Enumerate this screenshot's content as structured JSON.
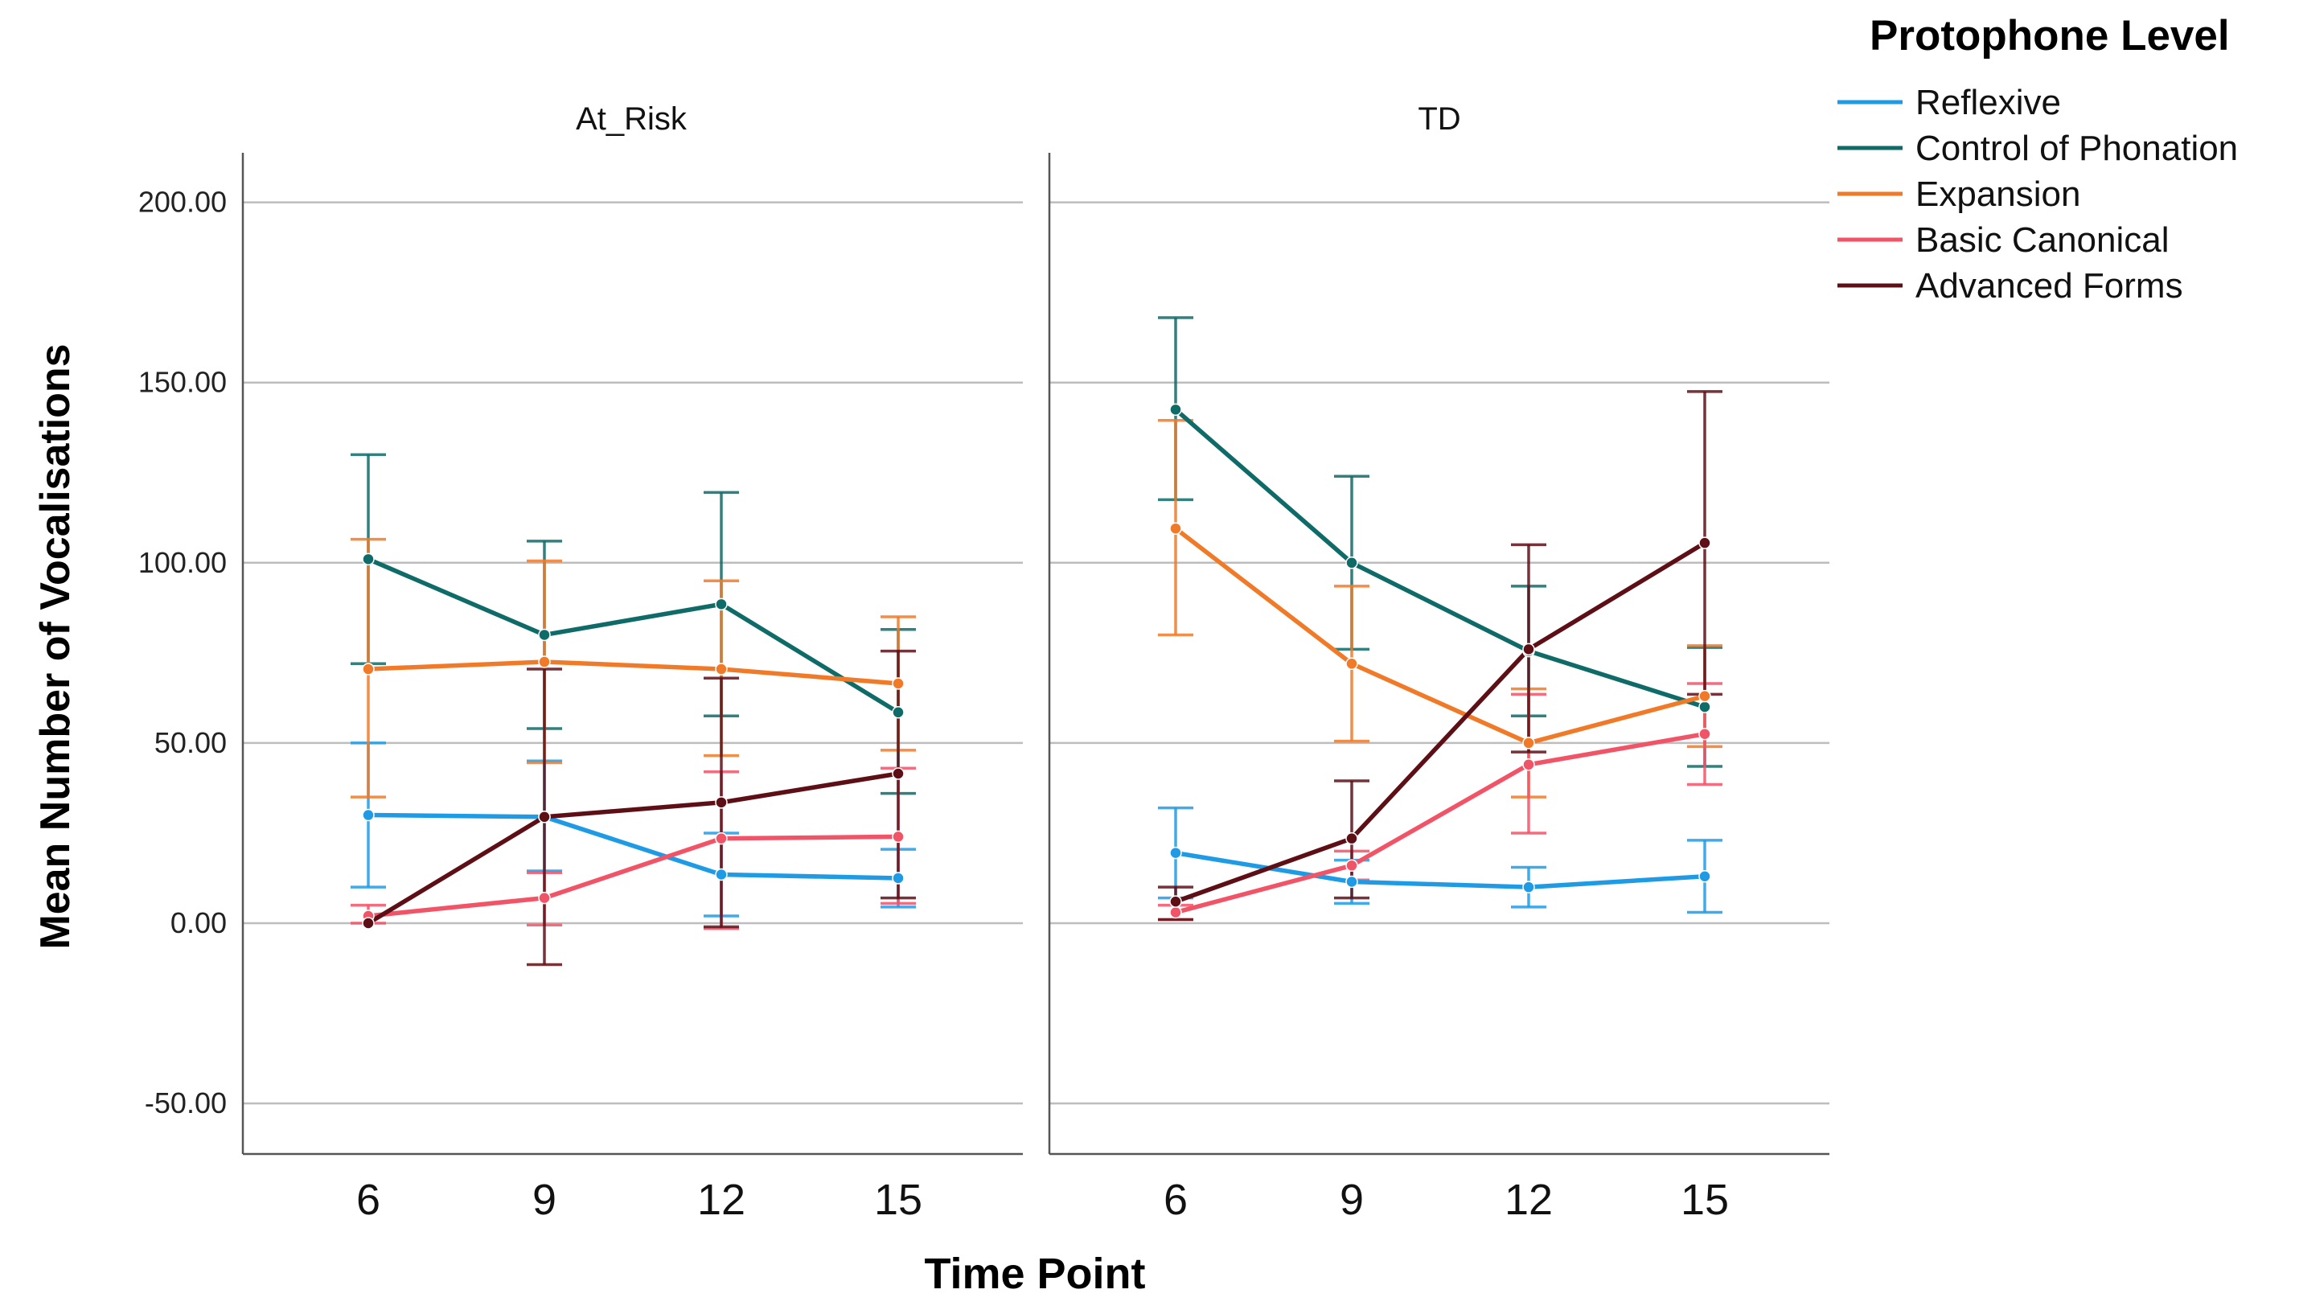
{
  "chart_data": {
    "type": "line",
    "legend_title": "Protophone Level",
    "legend_position": "top-right",
    "xlabel": "Time Point",
    "ylabel": "Mean Number of Vocalisations",
    "x": [
      6,
      9,
      12,
      15
    ],
    "x_tick_labels": [
      "6",
      "9",
      "12",
      "15"
    ],
    "ylim": [
      -63,
      213
    ],
    "y_ticks": [
      -50,
      0,
      50,
      100,
      150,
      200
    ],
    "y_tick_labels": [
      "-50.00",
      "0.00",
      "50.00",
      "100.00",
      "150.00",
      "200.00"
    ],
    "grid": "horizontal",
    "series_styles": [
      {
        "name": "Reflexive",
        "color": "#1f9be6"
      },
      {
        "name": "Control of Phonation",
        "color": "#0f6b68"
      },
      {
        "name": "Expansion",
        "color": "#f07a28"
      },
      {
        "name": "Basic Canonical",
        "color": "#f25467"
      },
      {
        "name": "Advanced Forms",
        "color": "#5e0f16"
      }
    ],
    "panels": [
      {
        "title": "At_Risk",
        "series": [
          {
            "name": "Reflexive",
            "values": [
              30,
              29.5,
              13.5,
              12.5
            ],
            "error_low": [
              10,
              14.5,
              2,
              4.5
            ],
            "error_high": [
              50,
              45,
              25,
              20.5
            ]
          },
          {
            "name": "Control of Phonation",
            "values": [
              101,
              80,
              88.5,
              58.5
            ],
            "error_low": [
              72,
              54,
              57.5,
              36
            ],
            "error_high": [
              130,
              106,
              119.5,
              81.5
            ]
          },
          {
            "name": "Expansion",
            "values": [
              70.5,
              72.5,
              70.5,
              66.5
            ],
            "error_low": [
              35,
              44.5,
              46.5,
              48
            ],
            "error_high": [
              106.5,
              100.5,
              95,
              85
            ]
          },
          {
            "name": "Basic Canonical",
            "values": [
              2,
              7,
              23.5,
              24
            ],
            "error_low": [
              0,
              -0.5,
              -1.5,
              5.5
            ],
            "error_high": [
              5,
              14,
              42,
              43
            ]
          },
          {
            "name": "Advanced Forms",
            "values": [
              0,
              29.5,
              33.5,
              41.5
            ],
            "error_low": [
              0,
              -11.5,
              -1,
              7
            ],
            "error_high": [
              0,
              70.5,
              68,
              75.5
            ]
          }
        ]
      },
      {
        "title": "TD",
        "series": [
          {
            "name": "Reflexive",
            "values": [
              19.5,
              11.5,
              10,
              13
            ],
            "error_low": [
              7,
              5.5,
              4.5,
              3
            ],
            "error_high": [
              32,
              17.5,
              15.5,
              23
            ]
          },
          {
            "name": "Control of Phonation",
            "values": [
              142.5,
              100,
              75.5,
              60
            ],
            "error_low": [
              117.5,
              76,
              57.5,
              43.5
            ],
            "error_high": [
              168,
              124,
              93.5,
              76.5
            ]
          },
          {
            "name": "Expansion",
            "values": [
              109.5,
              72,
              50,
              63
            ],
            "error_low": [
              80,
              50.5,
              35,
              49
            ],
            "error_high": [
              139.5,
              93.5,
              65,
              77
            ]
          },
          {
            "name": "Basic Canonical",
            "values": [
              3,
              16,
              44,
              52.5
            ],
            "error_low": [
              1,
              12,
              25,
              38.5
            ],
            "error_high": [
              5,
              20,
              63.5,
              66.5
            ]
          },
          {
            "name": "Advanced Forms",
            "values": [
              6,
              23.5,
              76,
              105.5
            ],
            "error_low": [
              1,
              7,
              47.5,
              63.5
            ],
            "error_high": [
              10,
              39.5,
              105,
              147.5
            ]
          }
        ]
      }
    ]
  }
}
